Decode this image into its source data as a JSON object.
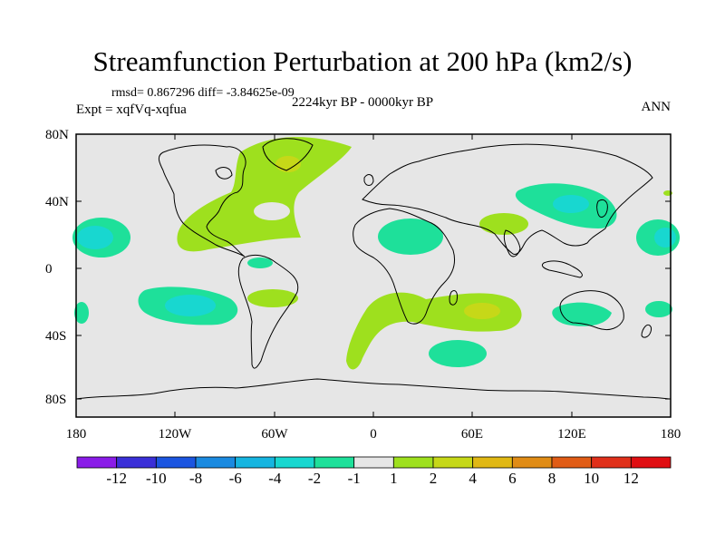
{
  "title": "Streamfunction Perturbation at 200 hPa (km2/s)",
  "stats_line": "rmsd= 0.867296 diff= -3.84625e-09",
  "experiment_line": "Expt = xqfVq-xqfua",
  "period_line": "2224kyr BP - 0000kyr BP",
  "season": "ANN",
  "lat_ticks": [
    "80N",
    "40N",
    "0",
    "40S",
    "80S"
  ],
  "lon_ticks": [
    "180",
    "120W",
    "60W",
    "0",
    "60E",
    "120E",
    "180"
  ],
  "colorbar": {
    "labels": [
      "-12",
      "-10",
      "-8",
      "-6",
      "-4",
      "-2",
      "-1",
      "1",
      "2",
      "4",
      "6",
      "8",
      "10",
      "12"
    ],
    "colors": [
      "#8a1ce8",
      "#3a2fd8",
      "#1b55e0",
      "#1a8ae0",
      "#16b5e0",
      "#18d7d0",
      "#1ee09a",
      "#e6e6e6",
      "#9ee01e",
      "#c6d818",
      "#e0b814",
      "#e08c16",
      "#e05c16",
      "#e0301a",
      "#e00e12"
    ]
  },
  "palette": {
    "background": "#e6e6e6",
    "pos1": "#9ee01e",
    "pos2": "#c6d818",
    "neg1": "#1ee09a",
    "neg2": "#18d7d0"
  }
}
